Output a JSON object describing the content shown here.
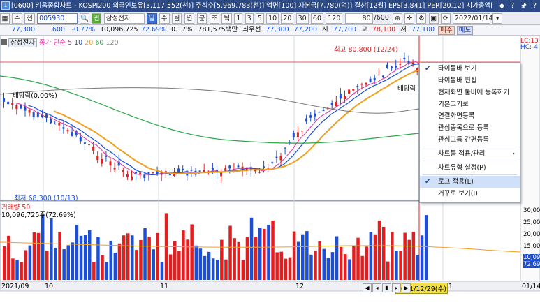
{
  "title_bar": {
    "text": "[0600] 키움종합차트 - KOSPI200 외국인보유[3,117,552(천)] 주식수[5,969,783(천)] 액면[100] 자본금[7,780(억)] 결산[12월] EPS[3,841] PER[20.12] 시가총액[",
    "controls": "◆ ? 🖈 ?"
  },
  "toolbar": {
    "items": [
      "주",
      "전",
      "005930",
      "삼성전자",
      "일",
      "주",
      "월",
      "년",
      "분",
      "초",
      "틱",
      "1",
      "3",
      "5",
      "10",
      "20",
      "30",
      "60",
      "120"
    ],
    "count": "80",
    "count_total": "/600",
    "date": "2022/01/14"
  },
  "quote": {
    "price": "77,300",
    "change": "600",
    "change_pct": "-0.77%",
    "volume": "10,096,725",
    "vol_ratio": "72.69%",
    "turnover": "0.17%",
    "amount": "781,575백만",
    "best_label": "최우선",
    "best_ask": "77,300",
    "best_bid": "77,200",
    "open_label": "시",
    "open": "77,700",
    "high_label": "고",
    "high": "78,100",
    "low_label": "저",
    "low": "77,100",
    "buy": "매수",
    "sell": "매도"
  },
  "price_legend": {
    "name": "삼성전자",
    "ma_title": "종가 단순",
    "periods": [
      "5",
      "10",
      "20",
      "60",
      "120"
    ],
    "colors": [
      "#e0309a",
      "#1c4fd6",
      "#f0a020",
      "#2aa84a",
      "#666666"
    ]
  },
  "volume_legend": {
    "title": "거래량",
    "period": "50",
    "value": "10,096,725주(72.69%)"
  },
  "annotations": {
    "high": "최고 80,800 (12/24)",
    "low": "최저 68,300 (10/13)",
    "dividend_left": "배당락(0.00%)",
    "dividend_right": "배당락",
    "lc_label": "LC:13",
    "hc_label": "HC:-4",
    "cursor_date": "2021/12/29(수)"
  },
  "x_axis": [
    "2021/09",
    "10",
    "11",
    "12",
    "01",
    "01/14"
  ],
  "volume_axis": [
    "30,000",
    "25,000",
    "20,000",
    "15,000",
    "10,09",
    "72.69"
  ],
  "context_menu": [
    {
      "label": "타이틀바 보기",
      "checked": true
    },
    {
      "label": "타이틀바 편집",
      "checked": false
    },
    {
      "label": "현재화면 툴바에 등록하기",
      "checked": false
    },
    {
      "label": "기본크기로",
      "checked": false
    },
    {
      "label": "연결화면등록",
      "checked": false
    },
    {
      "label": "관심종목으로 등록",
      "checked": false
    },
    {
      "label": "관심그룹 간편등록",
      "checked": false
    },
    {
      "label": "차트툴 적용/관리",
      "checked": false,
      "submenu": true
    },
    {
      "label": "차트유형 설정(P)",
      "checked": false
    },
    {
      "label": "로그 적용(L)",
      "checked": true,
      "highlight": true
    },
    {
      "label": "거꾸로 보기(I)",
      "checked": false
    }
  ],
  "colors": {
    "up": "#e02020",
    "down": "#1c4fd6",
    "ma5": "#e0309a",
    "ma10": "#1c4fd6",
    "ma20": "#f0a020",
    "ma60": "#2aa84a",
    "ma120": "#666666"
  },
  "icons": [
    "app-logo-icon",
    "checkmark-icon",
    "submenu-arrow-icon",
    "nav-first-icon",
    "nav-prev-icon",
    "nav-pause-icon",
    "nav-next-icon",
    "nav-last-icon"
  ]
}
